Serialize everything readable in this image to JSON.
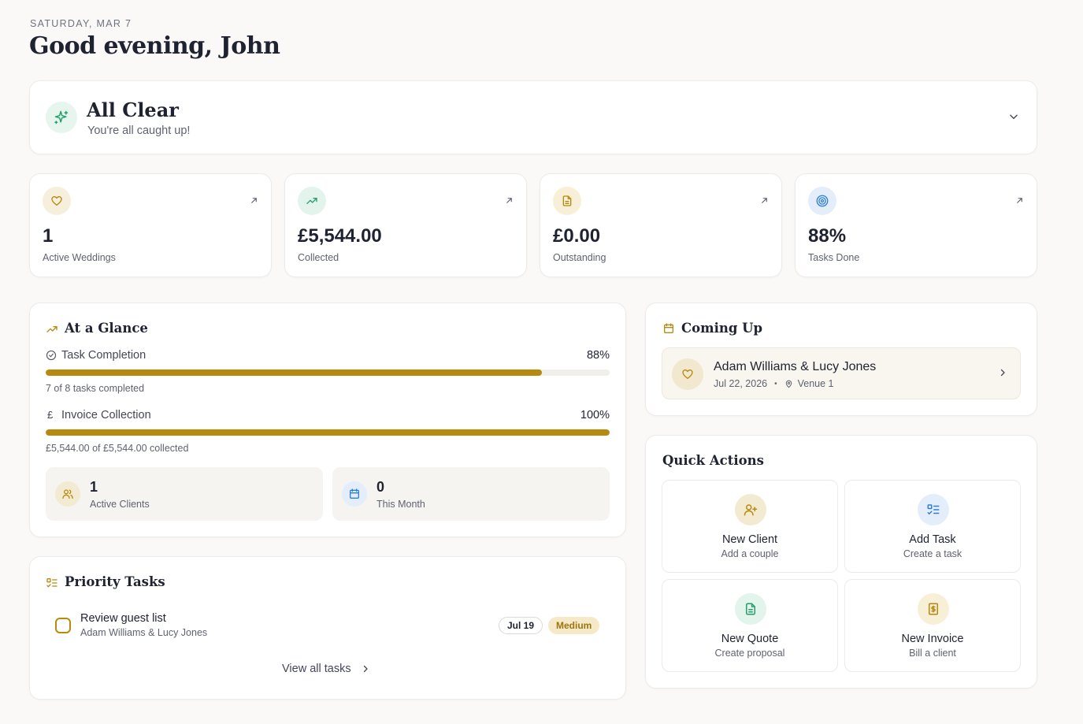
{
  "header": {
    "date": "SATURDAY, MAR 7",
    "greeting": "Good evening, John"
  },
  "status": {
    "title": "All Clear",
    "subtitle": "You're all caught up!",
    "icon": "sparkle-icon"
  },
  "stats": [
    {
      "value": "1",
      "label": "Active Weddings",
      "icon": "heart-icon",
      "color": "#b8890f"
    },
    {
      "value": "£5,544.00",
      "label": "Collected",
      "icon": "trending-up-icon",
      "color": "#22a06b"
    },
    {
      "value": "£0.00",
      "label": "Outstanding",
      "icon": "document-icon",
      "color": "#b8890f"
    },
    {
      "value": "88%",
      "label": "Tasks Done",
      "icon": "target-icon",
      "color": "#2f7fd8"
    }
  ],
  "glance": {
    "title": "At a Glance",
    "task_completion": {
      "label": "Task Completion",
      "pct": "88%",
      "fraction": 0.88,
      "sub": "7 of 8 tasks completed"
    },
    "invoice_collection": {
      "label": "Invoice Collection",
      "pct": "100%",
      "fraction": 1.0,
      "sub": "£5,544.00 of £5,544.00 collected",
      "symbol": "£"
    },
    "active_clients": {
      "value": "1",
      "label": "Active Clients"
    },
    "this_month": {
      "value": "0",
      "label": "This Month"
    }
  },
  "priority": {
    "title": "Priority Tasks",
    "tasks": [
      {
        "title": "Review guest list",
        "client": "Adam Williams & Lucy Jones",
        "date": "Jul 19",
        "priority": "Medium"
      }
    ],
    "view_all": "View all tasks"
  },
  "coming_up": {
    "title": "Coming Up",
    "events": [
      {
        "name": "Adam Williams & Lucy Jones",
        "date": "Jul 22, 2026",
        "venue": "Venue 1"
      }
    ]
  },
  "quick_actions": {
    "title": "Quick Actions",
    "items": [
      {
        "title": "New Client",
        "sub": "Add a couple",
        "icon": "user-plus-icon"
      },
      {
        "title": "Add Task",
        "sub": "Create a task",
        "icon": "list-check-icon"
      },
      {
        "title": "New Quote",
        "sub": "Create proposal",
        "icon": "file-text-icon"
      },
      {
        "title": "New Invoice",
        "sub": "Bill a client",
        "icon": "receipt-icon"
      }
    ]
  },
  "colors": {
    "accent": "#b8890f",
    "green": "#22a06b",
    "blue": "#2f7fd8",
    "background": "#faf9f7"
  }
}
